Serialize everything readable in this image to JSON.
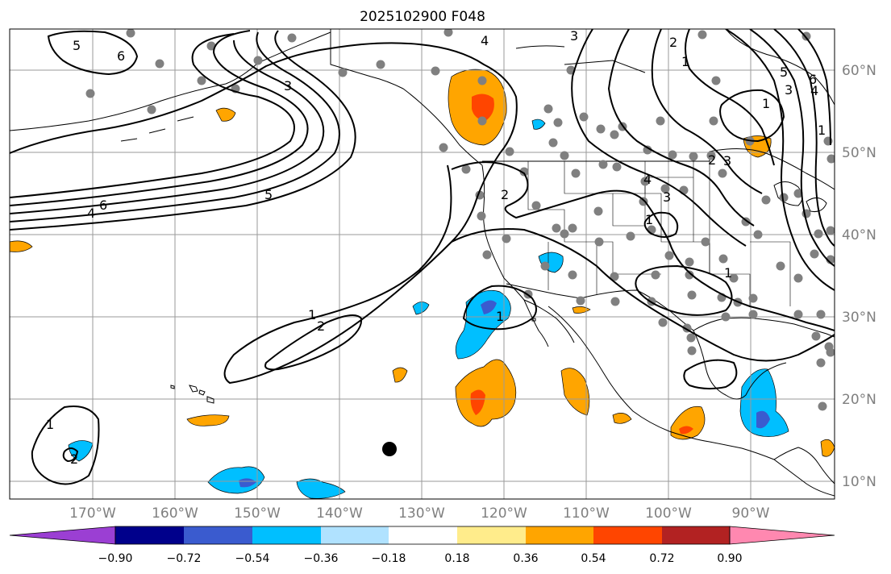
{
  "title": "2025102900 F048",
  "map": {
    "longitude_labels": [
      "170°W",
      "160°W",
      "150°W",
      "140°W",
      "130°W",
      "120°W",
      "110°W",
      "100°W",
      "90°W"
    ],
    "latitude_labels": [
      "60°N",
      "50°N",
      "40°N",
      "30°N",
      "20°N",
      "10°N"
    ],
    "contour_labels": [
      "3",
      "4",
      "6",
      "5",
      "6",
      "4",
      "3",
      "5",
      "1",
      "2",
      "1",
      "2",
      "1",
      "2",
      "3",
      "4",
      "3",
      "1",
      "1",
      "3",
      "4",
      "5",
      "6",
      "1",
      "2",
      "1",
      "1",
      "2"
    ]
  },
  "colorbar": {
    "tick_labels": [
      "−0.90",
      "−0.72",
      "−0.54",
      "−0.36",
      "−0.18",
      "0.18",
      "0.36",
      "0.54",
      "0.72",
      "0.90"
    ],
    "colors": [
      "#9b3fd3",
      "#00008b",
      "#3a5bcf",
      "#00bfff",
      "#b0e2ff",
      "#ffffff",
      "#ffec8b",
      "#ffa500",
      "#ff4500",
      "#b22222",
      "#ff88b0"
    ]
  },
  "colors": {
    "grid": "#9a9a9a",
    "coast": "#000000",
    "station": "#808080",
    "contour": "#000000"
  }
}
